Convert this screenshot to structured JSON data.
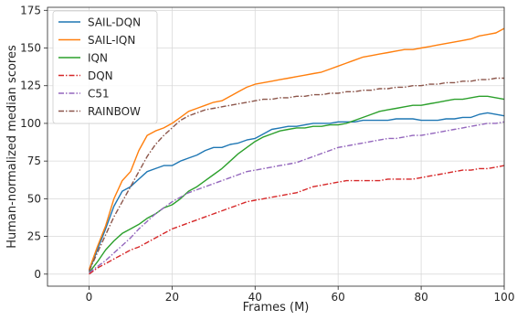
{
  "chart_data": {
    "type": "line",
    "title": "",
    "xlabel": "Frames (M)",
    "ylabel": "Human-normalized median scores",
    "xlim": [
      -10,
      100
    ],
    "ylim": [
      -8,
      177
    ],
    "xticks": [
      0,
      20,
      40,
      60,
      80,
      100
    ],
    "xtick_labels": [
      "0",
      "20",
      "40",
      "60",
      "80",
      "100"
    ],
    "yticks": [
      0,
      25,
      50,
      75,
      100,
      125,
      150,
      175
    ],
    "ytick_labels": [
      "0",
      "25",
      "50",
      "75",
      "100",
      "125",
      "150",
      "175"
    ],
    "grid": true,
    "legend_position": "top-left",
    "series": [
      {
        "name": "SAIL-DQN",
        "color": "#1f77b4",
        "dash": "solid",
        "x": [
          0,
          2,
          4,
          6,
          8,
          10,
          12,
          14,
          16,
          18,
          20,
          22,
          24,
          26,
          28,
          30,
          32,
          34,
          36,
          38,
          40,
          42,
          44,
          46,
          48,
          50,
          52,
          54,
          56,
          58,
          60,
          62,
          64,
          66,
          68,
          70,
          72,
          74,
          76,
          78,
          80,
          82,
          84,
          86,
          88,
          90,
          92,
          94,
          96,
          98,
          100
        ],
        "y": [
          2,
          16,
          30,
          45,
          55,
          58,
          63,
          68,
          70,
          72,
          72,
          75,
          77,
          79,
          82,
          84,
          84,
          86,
          87,
          89,
          90,
          93,
          96,
          97,
          98,
          98,
          99,
          100,
          100,
          100,
          101,
          101,
          101,
          102,
          102,
          102,
          102,
          103,
          103,
          103,
          102,
          102,
          102,
          103,
          103,
          104,
          104,
          106,
          107,
          106,
          105
        ]
      },
      {
        "name": "SAIL-IQN",
        "color": "#ff7f0e",
        "dash": "solid",
        "x": [
          0,
          2,
          4,
          6,
          8,
          10,
          12,
          14,
          16,
          18,
          20,
          22,
          24,
          26,
          28,
          30,
          32,
          34,
          36,
          38,
          40,
          42,
          44,
          46,
          48,
          50,
          52,
          54,
          56,
          58,
          60,
          62,
          64,
          66,
          68,
          70,
          72,
          74,
          76,
          78,
          80,
          82,
          84,
          86,
          88,
          90,
          92,
          94,
          96,
          98,
          100
        ],
        "y": [
          3,
          18,
          32,
          50,
          62,
          68,
          82,
          92,
          95,
          97,
          100,
          104,
          108,
          110,
          112,
          114,
          115,
          118,
          121,
          124,
          126,
          127,
          128,
          129,
          130,
          131,
          132,
          133,
          134,
          136,
          138,
          140,
          142,
          144,
          145,
          146,
          147,
          148,
          149,
          149,
          150,
          151,
          152,
          153,
          154,
          155,
          156,
          158,
          159,
          160,
          163
        ]
      },
      {
        "name": "IQN",
        "color": "#2ca02c",
        "dash": "solid",
        "x": [
          0,
          2,
          4,
          6,
          8,
          10,
          12,
          14,
          16,
          18,
          20,
          22,
          24,
          26,
          28,
          30,
          32,
          34,
          36,
          38,
          40,
          42,
          44,
          46,
          48,
          50,
          52,
          54,
          56,
          58,
          60,
          62,
          64,
          66,
          68,
          70,
          72,
          74,
          76,
          78,
          80,
          82,
          84,
          86,
          88,
          90,
          92,
          94,
          96,
          98,
          100
        ],
        "y": [
          1,
          8,
          16,
          22,
          27,
          30,
          33,
          37,
          40,
          44,
          46,
          50,
          55,
          58,
          62,
          66,
          70,
          75,
          80,
          84,
          88,
          91,
          93,
          95,
          96,
          97,
          97,
          98,
          98,
          99,
          99,
          100,
          102,
          104,
          106,
          108,
          109,
          110,
          111,
          112,
          112,
          113,
          114,
          115,
          116,
          116,
          117,
          118,
          118,
          117,
          116
        ]
      },
      {
        "name": "DQN",
        "color": "#d62728",
        "dash": "dashdot",
        "x": [
          0,
          2,
          4,
          6,
          8,
          10,
          12,
          14,
          16,
          18,
          20,
          22,
          24,
          26,
          28,
          30,
          32,
          34,
          36,
          38,
          40,
          42,
          44,
          46,
          48,
          50,
          52,
          54,
          56,
          58,
          60,
          62,
          64,
          66,
          68,
          70,
          72,
          74,
          76,
          78,
          80,
          82,
          84,
          86,
          88,
          90,
          92,
          94,
          96,
          98,
          100
        ],
        "y": [
          0,
          4,
          7,
          10,
          13,
          16,
          18,
          21,
          24,
          27,
          30,
          32,
          34,
          36,
          38,
          40,
          42,
          44,
          46,
          48,
          49,
          50,
          51,
          52,
          53,
          54,
          56,
          58,
          59,
          60,
          61,
          62,
          62,
          62,
          62,
          62,
          63,
          63,
          63,
          63,
          64,
          65,
          66,
          67,
          68,
          69,
          69,
          70,
          70,
          71,
          72
        ]
      },
      {
        "name": "C51",
        "color": "#9467bd",
        "dash": "dashdot",
        "x": [
          0,
          2,
          4,
          6,
          8,
          10,
          12,
          14,
          16,
          18,
          20,
          22,
          24,
          26,
          28,
          30,
          32,
          34,
          36,
          38,
          40,
          42,
          44,
          46,
          48,
          50,
          52,
          54,
          56,
          58,
          60,
          62,
          64,
          66,
          68,
          70,
          72,
          74,
          76,
          78,
          80,
          82,
          84,
          86,
          88,
          90,
          92,
          94,
          96,
          98,
          100
        ],
        "y": [
          1,
          5,
          9,
          14,
          19,
          24,
          30,
          35,
          40,
          44,
          48,
          51,
          54,
          56,
          58,
          60,
          62,
          64,
          66,
          68,
          69,
          70,
          71,
          72,
          73,
          74,
          76,
          78,
          80,
          82,
          84,
          85,
          86,
          87,
          88,
          89,
          90,
          90,
          91,
          92,
          92,
          93,
          94,
          95,
          96,
          97,
          98,
          99,
          100,
          100,
          101
        ]
      },
      {
        "name": "RAINBOW",
        "color": "#8c564b",
        "dash": "dashdot",
        "x": [
          0,
          2,
          4,
          6,
          8,
          10,
          12,
          14,
          16,
          18,
          20,
          22,
          24,
          26,
          28,
          30,
          32,
          34,
          36,
          38,
          40,
          42,
          44,
          46,
          48,
          50,
          52,
          54,
          56,
          58,
          60,
          62,
          64,
          66,
          68,
          70,
          72,
          74,
          76,
          78,
          80,
          82,
          84,
          86,
          88,
          90,
          92,
          94,
          96,
          98,
          100
        ],
        "y": [
          2,
          14,
          26,
          38,
          48,
          58,
          68,
          78,
          86,
          92,
          97,
          102,
          105,
          107,
          109,
          110,
          111,
          112,
          113,
          114,
          115,
          116,
          116,
          117,
          117,
          118,
          118,
          119,
          119,
          120,
          120,
          121,
          121,
          122,
          122,
          123,
          123,
          124,
          124,
          125,
          125,
          126,
          126,
          127,
          127,
          128,
          128,
          129,
          129,
          130,
          130
        ]
      }
    ]
  }
}
